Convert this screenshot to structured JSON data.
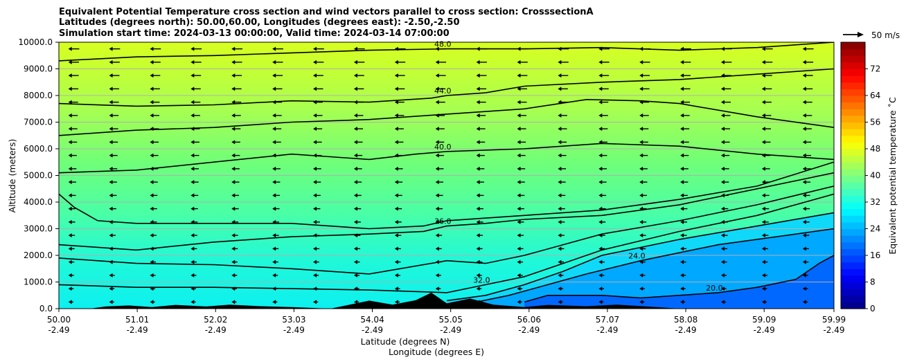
{
  "title_lines": [
    "Equivalent Potential Temperature cross section and wind vectors parallel to cross section: CrosssectionA",
    "Latitudes (degrees north): 50.00,60.00, Longitudes (degrees east): -2.50,-2.50",
    "Simulation start time: 2024-03-13 00:00:00, Valid time: 2024-03-14 07:00:00"
  ],
  "quiver_key_label": "50 m/s",
  "colorbar": {
    "label": "Equivalent potential temperature ˚C",
    "range": [
      0,
      80
    ],
    "ticks": [
      "0",
      "8",
      "16",
      "24",
      "32",
      "40",
      "48",
      "56",
      "64",
      "72"
    ]
  },
  "colors": {
    "terrain": "#000000",
    "gridline": "#b0b0b0",
    "contour": "#000000"
  },
  "chart_data": {
    "type": "heatmap",
    "title": "Equivalent Potential Temperature cross section and wind vectors parallel to cross section: CrosssectionA",
    "xlabel": "Latitude (degrees N)",
    "xlabel2": "Longitude (degrees E)",
    "ylabel": "Altitude (meters)",
    "xlim": [
      50.0,
      59.99
    ],
    "ylim": [
      0,
      10000
    ],
    "grid": "horizontal",
    "colormap": "jet",
    "x_ticks": [
      {
        "lat": "50.00",
        "lon": "-2.49"
      },
      {
        "lat": "51.01",
        "lon": "-2.49"
      },
      {
        "lat": "52.02",
        "lon": "-2.49"
      },
      {
        "lat": "53.03",
        "lon": "-2.49"
      },
      {
        "lat": "54.04",
        "lon": "-2.49"
      },
      {
        "lat": "55.05",
        "lon": "-2.49"
      },
      {
        "lat": "56.06",
        "lon": "-2.49"
      },
      {
        "lat": "57.07",
        "lon": "-2.49"
      },
      {
        "lat": "58.08",
        "lon": "-2.49"
      },
      {
        "lat": "59.09",
        "lon": "-2.49"
      },
      {
        "lat": "59.99",
        "lon": "-2.49"
      }
    ],
    "y_ticks": [
      "0.0",
      "1000.0",
      "2000.0",
      "3000.0",
      "4000.0",
      "5000.0",
      "6000.0",
      "7000.0",
      "8000.0",
      "9000.0",
      "10000.0"
    ],
    "contours": [
      {
        "level": 48,
        "label": "48.0",
        "points": [
          [
            50.0,
            9300
          ],
          [
            51.0,
            9450
          ],
          [
            52.0,
            9500
          ],
          [
            53.0,
            9600
          ],
          [
            54.0,
            9700
          ],
          [
            55.0,
            9750
          ],
          [
            56.0,
            9750
          ],
          [
            57.0,
            9800
          ],
          [
            58.0,
            9700
          ],
          [
            59.0,
            9800
          ],
          [
            59.99,
            10000
          ]
        ]
      },
      {
        "level": 44,
        "label": "44.0",
        "points": [
          [
            50.0,
            7700
          ],
          [
            51.0,
            7600
          ],
          [
            52.0,
            7650
          ],
          [
            53.0,
            7800
          ],
          [
            54.0,
            7750
          ],
          [
            54.8,
            7900
          ],
          [
            55.0,
            8000
          ],
          [
            55.5,
            8100
          ],
          [
            56.0,
            8350
          ],
          [
            57.0,
            8500
          ],
          [
            58.0,
            8600
          ],
          [
            59.0,
            8800
          ],
          [
            59.99,
            9000
          ]
        ]
      },
      {
        "level": 42,
        "label": "",
        "points": [
          [
            50.0,
            6500
          ],
          [
            51.0,
            6700
          ],
          [
            52.0,
            6800
          ],
          [
            53.0,
            7000
          ],
          [
            54.0,
            7100
          ],
          [
            55.0,
            7300
          ],
          [
            56.0,
            7500
          ],
          [
            56.8,
            7850
          ],
          [
            57.5,
            7800
          ],
          [
            58.0,
            7700
          ],
          [
            59.0,
            7200
          ],
          [
            59.99,
            6800
          ]
        ]
      },
      {
        "level": 40,
        "label": "40.0",
        "points": [
          [
            50.0,
            5100
          ],
          [
            51.0,
            5200
          ],
          [
            52.0,
            5500
          ],
          [
            53.0,
            5800
          ],
          [
            54.0,
            5600
          ],
          [
            54.6,
            5800
          ],
          [
            55.0,
            5900
          ],
          [
            56.0,
            6000
          ],
          [
            57.0,
            6200
          ],
          [
            58.0,
            6100
          ],
          [
            59.0,
            5800
          ],
          [
            59.99,
            5600
          ]
        ]
      },
      {
        "level": 38,
        "label": "",
        "points": [
          [
            50.0,
            4300
          ],
          [
            50.2,
            3800
          ],
          [
            50.5,
            3300
          ],
          [
            51.0,
            3200
          ],
          [
            52.0,
            3200
          ],
          [
            53.0,
            3200
          ],
          [
            54.0,
            3000
          ],
          [
            54.7,
            3100
          ],
          [
            55.0,
            3300
          ],
          [
            56.0,
            3500
          ],
          [
            57.0,
            3700
          ],
          [
            58.0,
            4100
          ],
          [
            59.0,
            4600
          ],
          [
            59.99,
            5500
          ]
        ]
      },
      {
        "level": 36,
        "label": "36.0",
        "points": [
          [
            50.0,
            2400
          ],
          [
            51.0,
            2200
          ],
          [
            52.0,
            2500
          ],
          [
            53.0,
            2700
          ],
          [
            54.0,
            2800
          ],
          [
            54.7,
            2900
          ],
          [
            55.0,
            3100
          ],
          [
            55.5,
            3200
          ],
          [
            56.0,
            3350
          ],
          [
            57.0,
            3500
          ],
          [
            58.0,
            3900
          ],
          [
            59.0,
            4500
          ],
          [
            59.99,
            5100
          ]
        ]
      },
      {
        "level": 34,
        "label": "",
        "points": [
          [
            50.0,
            1900
          ],
          [
            51.0,
            1700
          ],
          [
            52.0,
            1650
          ],
          [
            53.0,
            1500
          ],
          [
            54.0,
            1300
          ],
          [
            55.0,
            1800
          ],
          [
            55.5,
            1700
          ],
          [
            56.0,
            2000
          ],
          [
            56.5,
            2400
          ],
          [
            57.0,
            2800
          ],
          [
            58.0,
            3300
          ],
          [
            59.0,
            3900
          ],
          [
            59.99,
            4600
          ]
        ]
      },
      {
        "level": 32,
        "label": "32.0",
        "points": [
          [
            50.0,
            900
          ],
          [
            51.0,
            800
          ],
          [
            52.0,
            800
          ],
          [
            53.0,
            750
          ],
          [
            54.0,
            700
          ],
          [
            55.0,
            600
          ],
          [
            55.5,
            900
          ],
          [
            56.0,
            1200
          ],
          [
            56.5,
            1700
          ],
          [
            57.0,
            2200
          ],
          [
            58.0,
            2900
          ],
          [
            59.0,
            3500
          ],
          [
            59.99,
            4300
          ]
        ]
      },
      {
        "level": 28,
        "label": "",
        "points": [
          [
            55.0,
            300
          ],
          [
            55.5,
            500
          ],
          [
            56.0,
            900
          ],
          [
            56.5,
            1400
          ],
          [
            57.0,
            2000
          ],
          [
            58.0,
            2600
          ],
          [
            59.0,
            3100
          ],
          [
            59.99,
            3600
          ]
        ]
      },
      {
        "level": 24,
        "label": "24.0",
        "points": [
          [
            55.3,
            200
          ],
          [
            55.8,
            500
          ],
          [
            56.3,
            900
          ],
          [
            56.8,
            1300
          ],
          [
            57.5,
            1800
          ],
          [
            58.5,
            2400
          ],
          [
            59.5,
            2800
          ],
          [
            59.99,
            3000
          ]
        ]
      },
      {
        "level": 20,
        "label": "20.0",
        "points": [
          [
            56.0,
            250
          ],
          [
            56.3,
            500
          ],
          [
            57.0,
            500
          ],
          [
            57.5,
            400
          ],
          [
            58.5,
            600
          ],
          [
            59.0,
            800
          ],
          [
            59.5,
            1100
          ],
          [
            59.8,
            1700
          ],
          [
            59.99,
            2000
          ]
        ]
      }
    ],
    "wind_u_range": [
      -50,
      0
    ]
  }
}
